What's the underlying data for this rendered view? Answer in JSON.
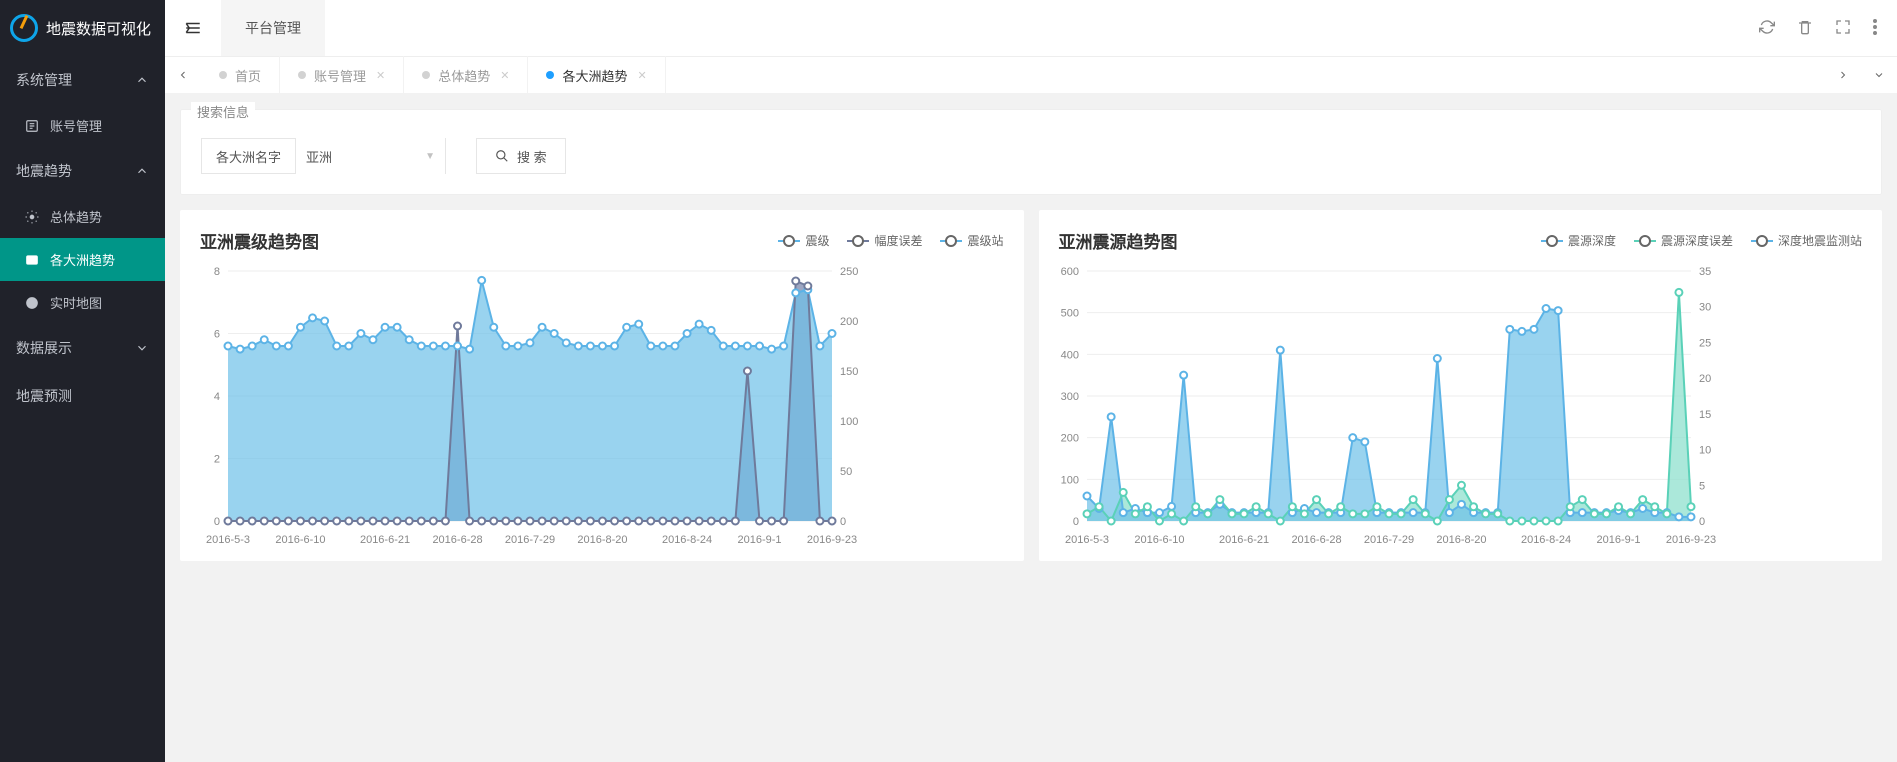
{
  "app": {
    "title": "地震数据可视化"
  },
  "sidebar": {
    "groups": [
      {
        "label": "系统管理",
        "expanded": true,
        "items": [
          {
            "label": "账号管理",
            "active": false
          }
        ]
      },
      {
        "label": "地震趋势",
        "expanded": true,
        "items": [
          {
            "label": "总体趋势",
            "active": false
          },
          {
            "label": "各大洲趋势",
            "active": true
          },
          {
            "label": "实时地图",
            "active": false
          }
        ]
      },
      {
        "label": "数据展示",
        "expanded": false,
        "items": []
      },
      {
        "label": "地震预测",
        "expanded": false,
        "items": [],
        "noChevron": true
      }
    ]
  },
  "topbar": {
    "tab": "平台管理"
  },
  "tabs": [
    {
      "label": "首页",
      "active": false,
      "closable": false
    },
    {
      "label": "账号管理",
      "active": false,
      "closable": true
    },
    {
      "label": "总体趋势",
      "active": false,
      "closable": true
    },
    {
      "label": "各大洲趋势",
      "active": true,
      "closable": true
    }
  ],
  "search": {
    "legend": "搜索信息",
    "fieldLabel": "各大洲名字",
    "selectValue": "亚洲",
    "buttonLabel": "搜 索"
  },
  "colors": {
    "series1": "#5cb3e6",
    "series1Fill": "#6dc1e8",
    "series2": "#6f7a9b",
    "series2Fill": "#7c88ad",
    "series3": "#5cb3e6",
    "depth1": "#5cb3e6",
    "depth1Fill": "#6dc1e8",
    "depth2": "#5ad1b8",
    "depth2Fill": "#8fe0ce",
    "depth3": "#5cb3e6",
    "grid": "#eeeeee",
    "axis": "#888888",
    "background": "#ffffff"
  },
  "chart1": {
    "title": "亚洲震级趋势图",
    "legend": [
      {
        "label": "震级",
        "color": "#5cb3e6"
      },
      {
        "label": "幅度误差",
        "color": "#6f7a9b"
      },
      {
        "label": "震级站",
        "color": "#5cb3e6"
      }
    ],
    "xlabels": [
      "2016-5-3",
      "2016-6-10",
      "2016-6-21",
      "2016-6-28",
      "2016-7-29",
      "2016-8-20",
      "2016-8-24",
      "2016-9-1",
      "2016-9-23"
    ],
    "yLeft": {
      "min": 0,
      "max": 8,
      "step": 2
    },
    "yRight": {
      "min": 0,
      "max": 250,
      "step": 50
    },
    "magnitude": [
      5.6,
      5.5,
      5.6,
      5.8,
      5.6,
      5.6,
      6.2,
      6.5,
      6.4,
      5.6,
      5.6,
      6.0,
      5.8,
      6.2,
      6.2,
      5.8,
      5.6,
      5.6,
      5.6,
      5.6,
      5.5,
      7.7,
      6.2,
      5.6,
      5.6,
      5.7,
      6.2,
      6.0,
      5.7,
      5.6,
      5.6,
      5.6,
      5.6,
      6.2,
      6.3,
      5.6,
      5.6,
      5.6,
      6.0,
      6.3,
      6.1,
      5.6,
      5.6,
      5.6,
      5.6,
      5.5,
      5.6,
      7.3,
      7.4,
      5.6,
      6.0
    ],
    "error": [
      0,
      0,
      0,
      0,
      0,
      0,
      0,
      0,
      0,
      0,
      0,
      0,
      0,
      0,
      0,
      0,
      0,
      0,
      0,
      195,
      0,
      0,
      0,
      0,
      0,
      0,
      0,
      0,
      0,
      0,
      0,
      0,
      0,
      0,
      0,
      0,
      0,
      0,
      0,
      0,
      0,
      0,
      0,
      150,
      0,
      0,
      0,
      240,
      235,
      0,
      0
    ]
  },
  "chart2": {
    "title": "亚洲震源趋势图",
    "legend": [
      {
        "label": "震源深度",
        "color": "#5cb3e6"
      },
      {
        "label": "震源深度误差",
        "color": "#5ad1b8"
      },
      {
        "label": "深度地震监测站",
        "color": "#5cb3e6"
      }
    ],
    "xlabels": [
      "2016-5-3",
      "2016-6-10",
      "2016-6-21",
      "2016-6-28",
      "2016-7-29",
      "2016-8-20",
      "2016-8-24",
      "2016-9-1",
      "2016-9-23"
    ],
    "yLeft": {
      "min": 0,
      "max": 600,
      "step": 100
    },
    "yRight": {
      "min": 0,
      "max": 35,
      "step": 5
    },
    "depth": [
      60,
      30,
      250,
      20,
      30,
      20,
      20,
      35,
      350,
      20,
      20,
      40,
      20,
      20,
      20,
      20,
      410,
      20,
      30,
      20,
      20,
      20,
      200,
      190,
      20,
      20,
      20,
      20,
      20,
      390,
      20,
      40,
      20,
      20,
      20,
      460,
      455,
      460,
      510,
      505,
      20,
      20,
      20,
      20,
      25,
      20,
      30,
      20,
      20,
      10,
      10
    ],
    "depthError": [
      1,
      2,
      0,
      4,
      1,
      2,
      0,
      1,
      0,
      2,
      1,
      3,
      1,
      1,
      2,
      1,
      0,
      2,
      1,
      3,
      1,
      2,
      1,
      1,
      2,
      1,
      1,
      3,
      1,
      0,
      3,
      5,
      2,
      1,
      1,
      0,
      0,
      0,
      0,
      0,
      2,
      3,
      1,
      1,
      2,
      1,
      3,
      2,
      1,
      32,
      2
    ]
  }
}
